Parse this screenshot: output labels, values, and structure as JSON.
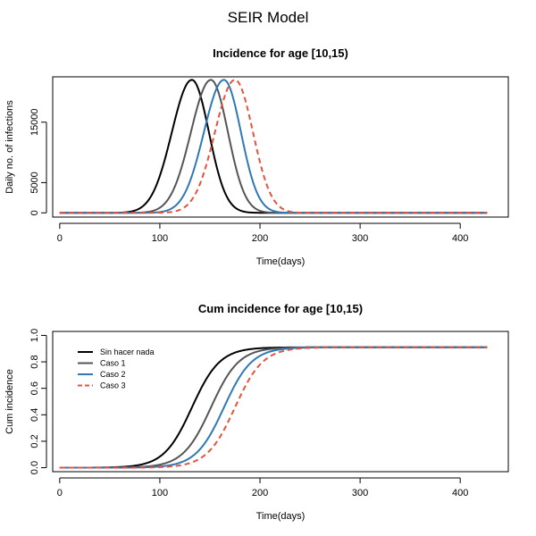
{
  "figure": {
    "title": "SEIR Model"
  },
  "colors": {
    "sin_hacer_nada": "#000000",
    "caso_1": "#555555",
    "caso_2": "#2f78b4",
    "caso_3": "#e4533d"
  },
  "chart_data": [
    {
      "id": "incidence",
      "type": "line",
      "title": "Incidence for age [10,15)",
      "xlabel": "Time(days)",
      "ylabel": "Daily no. of infections",
      "xlim": [
        -7,
        448
      ],
      "ylim": [
        -700,
        22500
      ],
      "xticks": [
        0,
        100,
        200,
        300,
        400
      ],
      "xtick_labels": [
        "0",
        "100",
        "200",
        "300",
        "400"
      ],
      "yticks": [
        0,
        5000,
        15000
      ],
      "ytick_labels": [
        "0",
        "5000",
        "15000"
      ],
      "grid": false,
      "x_range": [
        0,
        427
      ],
      "series": [
        {
          "name": "Sin hacer nada",
          "color": "#000000",
          "dash": "solid",
          "curve": "gauss",
          "peak_x": 132,
          "peak_y": 22000,
          "sigma_left": 20,
          "sigma_right": 17,
          "baseline": 100
        },
        {
          "name": "Caso 1",
          "color": "#555555",
          "dash": "solid",
          "curve": "gauss",
          "peak_x": 151,
          "peak_y": 22000,
          "sigma_left": 20,
          "sigma_right": 17,
          "baseline": 100
        },
        {
          "name": "Caso 2",
          "color": "#2f78b4",
          "dash": "solid",
          "curve": "gauss",
          "peak_x": 164,
          "peak_y": 22000,
          "sigma_left": 20,
          "sigma_right": 17,
          "baseline": 100
        },
        {
          "name": "Caso 3",
          "color": "#e4533d",
          "dash": "dashed",
          "curve": "gauss",
          "peak_x": 175,
          "peak_y": 22000,
          "sigma_left": 20,
          "sigma_right": 18,
          "baseline": 100
        }
      ]
    },
    {
      "id": "cumulative",
      "type": "line",
      "title": "Cum incidence for age [10,15)",
      "xlabel": "Time(days)",
      "ylabel": "Cum incidence",
      "xlim": [
        -7,
        448
      ],
      "ylim": [
        -0.03,
        1.03
      ],
      "xticks": [
        0,
        100,
        200,
        300,
        400
      ],
      "xtick_labels": [
        "0",
        "100",
        "200",
        "300",
        "400"
      ],
      "yticks": [
        0,
        0.2,
        0.4,
        0.6,
        0.8,
        1.0
      ],
      "ytick_labels": [
        "0.0",
        "0.2",
        "0.4",
        "0.6",
        "0.8",
        "1.0"
      ],
      "grid": false,
      "legend_position": "top-left",
      "x_range": [
        0,
        427
      ],
      "series": [
        {
          "name": "Sin hacer nada",
          "color": "#000000",
          "dash": "solid",
          "curve": "logistic",
          "mid_x": 132,
          "scale": 14,
          "max_y": 0.91
        },
        {
          "name": "Caso 1",
          "color": "#555555",
          "dash": "solid",
          "curve": "logistic",
          "mid_x": 151,
          "scale": 14,
          "max_y": 0.91
        },
        {
          "name": "Caso 2",
          "color": "#2f78b4",
          "dash": "solid",
          "curve": "logistic",
          "mid_x": 164,
          "scale": 14,
          "max_y": 0.91
        },
        {
          "name": "Caso 3",
          "color": "#e4533d",
          "dash": "dashed",
          "curve": "logistic",
          "mid_x": 175,
          "scale": 14,
          "max_y": 0.91
        }
      ]
    }
  ]
}
